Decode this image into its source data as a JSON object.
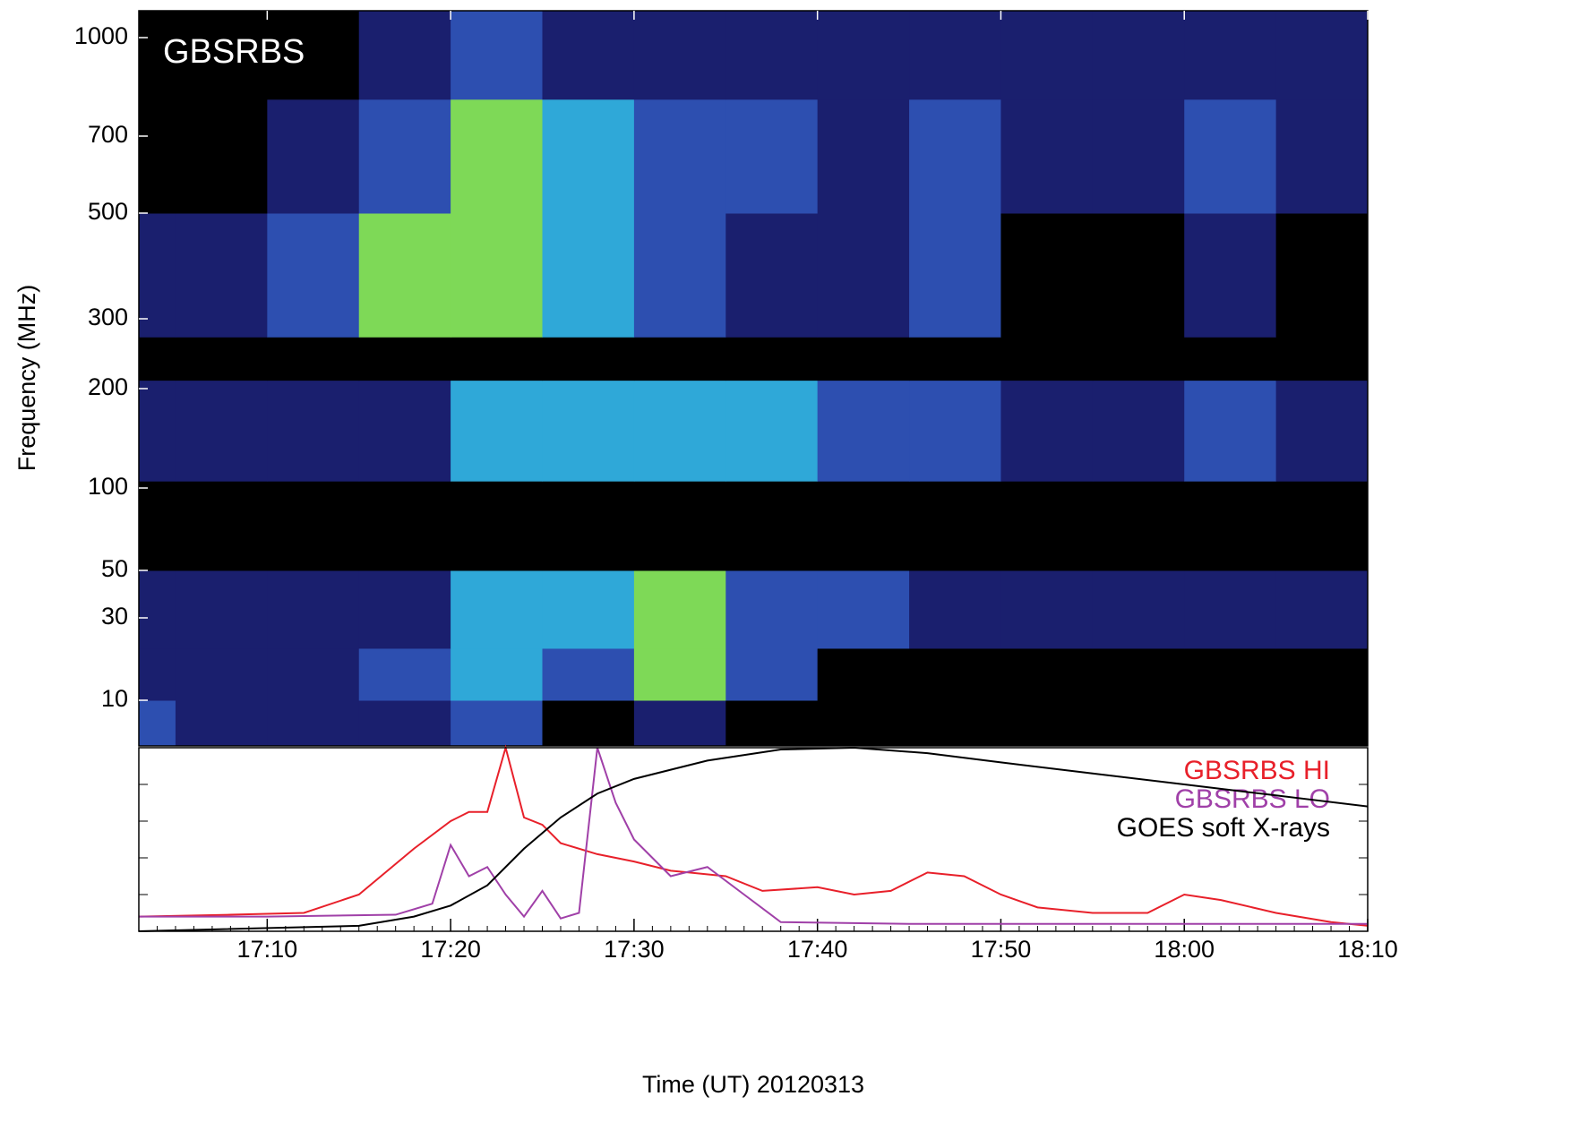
{
  "chart_data": [
    {
      "type": "spectrogram",
      "annotation": "GBSRBS",
      "y_label": "Frequency (MHz)",
      "log_y": true,
      "ylim": [
        5.4,
        1100
      ],
      "yticks": [
        10,
        30,
        50,
        100,
        200,
        300,
        500,
        700,
        1000
      ],
      "xlim": [
        "17:03",
        "18:10"
      ],
      "time_edges": [
        "17:03",
        "17:05",
        "17:10",
        "17:15",
        "17:20",
        "17:25",
        "17:30",
        "17:35",
        "17:40",
        "17:45",
        "17:50",
        "17:55",
        "18:00",
        "18:05",
        "18:10"
      ],
      "freq_edges": [
        5.4,
        10,
        20,
        50,
        105,
        210,
        270,
        500,
        800,
        1100
      ],
      "colors": [
        "#000000",
        "#1a1f6e",
        "#2d4fb0",
        "#2fa8d8",
        "#7ed957"
      ],
      "intensity": [
        [
          2,
          1,
          1,
          1,
          2,
          0,
          1,
          0,
          0,
          0,
          0,
          0,
          0,
          0
        ],
        [
          1,
          1,
          1,
          2,
          3,
          2,
          4,
          2,
          0,
          0,
          0,
          0,
          0,
          0
        ],
        [
          1,
          1,
          1,
          1,
          3,
          3,
          4,
          2,
          2,
          1,
          1,
          1,
          1,
          1
        ],
        [
          0,
          0,
          0,
          0,
          0,
          0,
          0,
          0,
          0,
          0,
          0,
          0,
          0,
          0
        ],
        [
          1,
          1,
          1,
          1,
          3,
          3,
          3,
          3,
          2,
          2,
          1,
          1,
          2,
          1
        ],
        [
          0,
          0,
          0,
          0,
          0,
          0,
          0,
          0,
          0,
          0,
          0,
          0,
          0,
          0
        ],
        [
          1,
          1,
          2,
          4,
          4,
          3,
          2,
          1,
          1,
          2,
          0,
          0,
          1,
          0
        ],
        [
          0,
          0,
          1,
          2,
          4,
          3,
          2,
          2,
          1,
          2,
          1,
          1,
          2,
          1
        ],
        [
          0,
          0,
          0,
          1,
          2,
          1,
          1,
          1,
          1,
          1,
          1,
          1,
          1,
          1
        ]
      ]
    },
    {
      "type": "line",
      "x_label": "Time (UT) 20120313",
      "xlim": [
        "17:03",
        "18:10"
      ],
      "xticks": [
        "17:10",
        "17:20",
        "17:30",
        "17:40",
        "17:50",
        "18:00",
        "18:10"
      ],
      "ylim": [
        0,
        1
      ],
      "series": [
        {
          "name": "GBSRBS HI",
          "color": "#e8202a",
          "x": [
            "17:03",
            "17:08",
            "17:12",
            "17:15",
            "17:18",
            "17:20",
            "17:21",
            "17:22",
            "17:23",
            "17:24",
            "17:25",
            "17:26",
            "17:28",
            "17:30",
            "17:32",
            "17:35",
            "17:37",
            "17:40",
            "17:42",
            "17:44",
            "17:46",
            "17:48",
            "17:50",
            "17:52",
            "17:55",
            "17:58",
            "18:00",
            "18:02",
            "18:05",
            "18:08",
            "18:10"
          ],
          "values": [
            0.08,
            0.09,
            0.1,
            0.2,
            0.45,
            0.6,
            0.65,
            0.65,
            1.0,
            0.62,
            0.58,
            0.48,
            0.42,
            0.38,
            0.33,
            0.3,
            0.22,
            0.24,
            0.2,
            0.22,
            0.32,
            0.3,
            0.2,
            0.13,
            0.1,
            0.1,
            0.2,
            0.17,
            0.1,
            0.05,
            0.03
          ]
        },
        {
          "name": "GBSRBS LO",
          "color": "#a040a8",
          "x": [
            "17:03",
            "17:10",
            "17:17",
            "17:19",
            "17:20",
            "17:21",
            "17:22",
            "17:23",
            "17:24",
            "17:25",
            "17:26",
            "17:27",
            "17:28",
            "17:29",
            "17:30",
            "17:32",
            "17:34",
            "17:36",
            "17:38",
            "17:45",
            "17:55",
            "18:05",
            "18:10"
          ],
          "values": [
            0.08,
            0.08,
            0.09,
            0.15,
            0.47,
            0.3,
            0.35,
            0.2,
            0.08,
            0.22,
            0.07,
            0.1,
            1.0,
            0.7,
            0.5,
            0.3,
            0.35,
            0.2,
            0.05,
            0.04,
            0.04,
            0.04,
            0.04
          ]
        },
        {
          "name": "GOES soft X-rays",
          "color": "#000000",
          "x": [
            "17:03",
            "17:15",
            "17:18",
            "17:20",
            "17:22",
            "17:24",
            "17:26",
            "17:28",
            "17:30",
            "17:34",
            "17:38",
            "17:42",
            "17:46",
            "17:50",
            "17:55",
            "18:00",
            "18:05",
            "18:10"
          ],
          "values": [
            0.0,
            0.03,
            0.08,
            0.14,
            0.25,
            0.45,
            0.62,
            0.75,
            0.83,
            0.93,
            0.99,
            1.0,
            0.97,
            0.92,
            0.86,
            0.8,
            0.74,
            0.68
          ]
        }
      ]
    }
  ]
}
